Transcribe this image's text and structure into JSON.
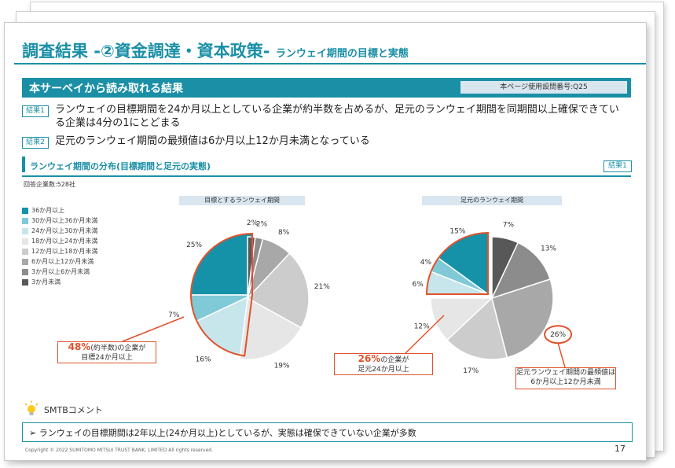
{
  "slide": {
    "title": "調査結果 -②資金調達・資本政策-",
    "subtitle": "ランウェイ期間の目標と実態",
    "banner": "本サーベイから読み取れる結果",
    "question_ref": "本ページ使用設問番号:Q25",
    "findings": [
      {
        "tag": "結果1",
        "text": "ランウェイの目標期間を24か月以上としている企業が約半数を占めるが、足元のランウェイ期間を同期間以上確保できている企業は4分の1にとどまる"
      },
      {
        "tag": "結果2",
        "text": "足元のランウェイ期間の最頻値は6か月以上12か月未満となっている"
      }
    ],
    "section_title": "ランウェイ期間の分布(目標期間と足元の実態)",
    "section_tag": "結果1",
    "respondents": "回答企業数:528社",
    "smtb_label": "SMTBコメント",
    "comment": "➢ ランウェイの目標期間は2年以上(24か月以上)としているが、実態は確保できていない企業が多数",
    "copyright": "Copyright © 2022 SUMITOMO MITSUI TRUST BANK, LIMITED All rights reserved.",
    "page_number": "17",
    "callouts": {
      "target_pct": "48%",
      "target_note": "(約半数)の企業が",
      "target_line2": "目標24か月以上",
      "current_pct": "26%",
      "current_note": "の企業が",
      "current_line2": "足元24か月以上",
      "mode_pct": "26%",
      "mode_line1": "足元ランウェイ期間の最頻値は",
      "mode_line2": "6か月以上12か月未満"
    }
  },
  "colors": {
    "accent": "#1a8fa6",
    "highlight": "#e0522b",
    "series": [
      "#1592a8",
      "#7fcad6",
      "#c6e6ec",
      "#e6e6e6",
      "#cccccc",
      "#a8a8a8",
      "#8c8c8c",
      "#585858"
    ]
  },
  "chart_data": [
    {
      "type": "pie",
      "title": "目標とするランウェイ期間",
      "categories": [
        "36か月以上",
        "30か月以上36か月未満",
        "24か月以上30か月未満",
        "18か月以上24か月未満",
        "12か月以上18か月未満",
        "6か月以上12か月未満",
        "3か月以上6か月未満",
        "3か月未満"
      ],
      "values": [
        25,
        7,
        16,
        19,
        21,
        8,
        2,
        2
      ],
      "labels": [
        "25%",
        "7%",
        "16%",
        "19%",
        "21%",
        "8%",
        "2%",
        "2%"
      ],
      "legend": "left"
    },
    {
      "type": "pie",
      "title": "足元のランウェイ期間",
      "categories": [
        "36か月以上",
        "30か月以上36か月未満",
        "24か月以上30か月未満",
        "18か月以上24か月未満",
        "12か月以上18か月未満",
        "6か月以上12か月未満",
        "3か月以上6か月未満",
        "3か月未満"
      ],
      "values": [
        15,
        4,
        6,
        12,
        17,
        26,
        13,
        7
      ],
      "labels": [
        "15%",
        "4%",
        "6%",
        "12%",
        "17%",
        "26%",
        "13%",
        "7%"
      ],
      "legend": "left"
    }
  ]
}
